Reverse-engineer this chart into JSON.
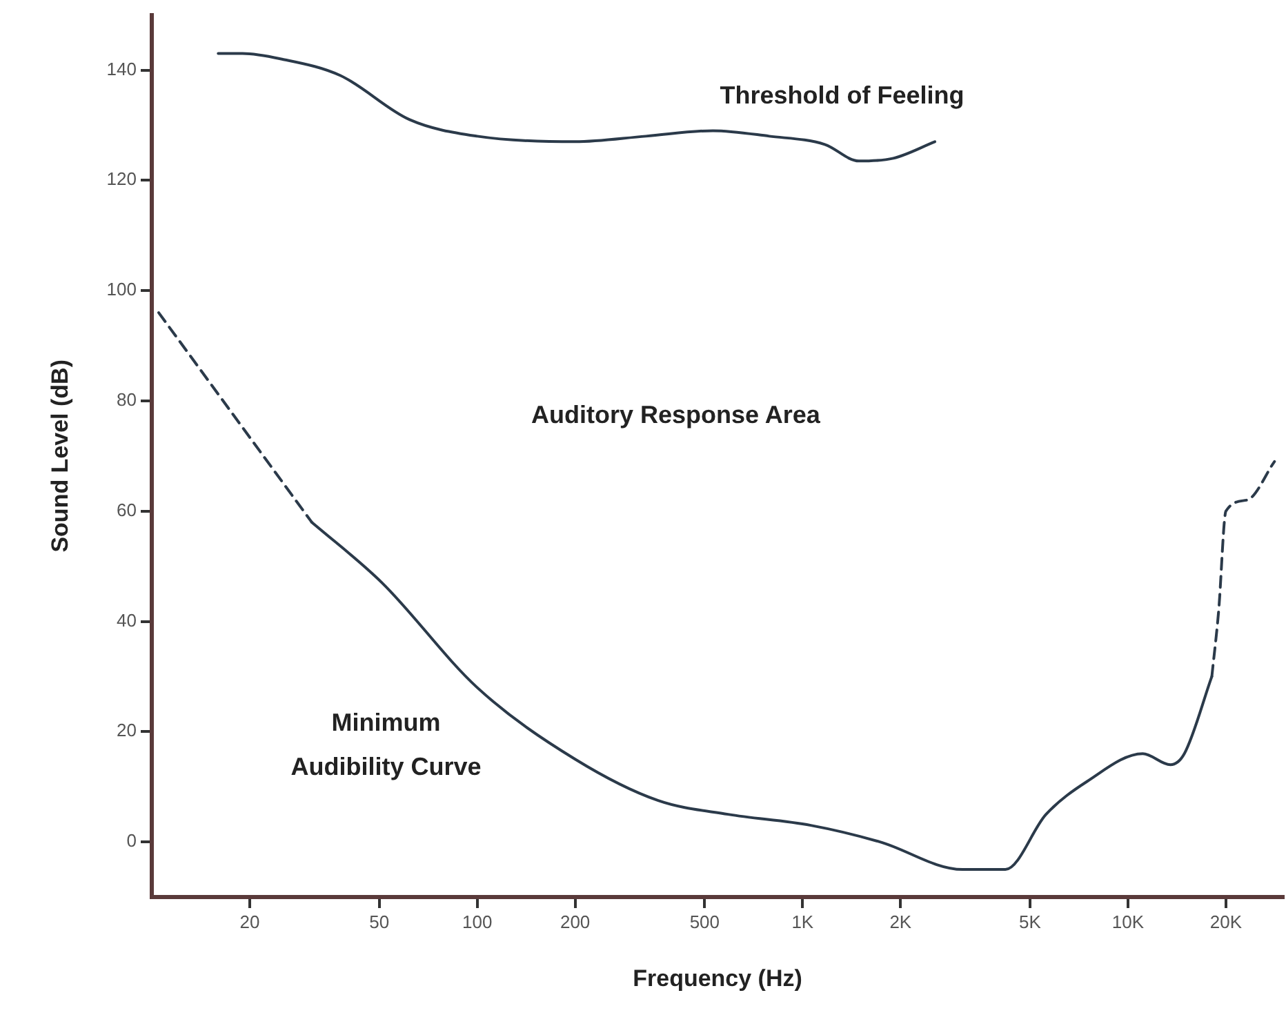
{
  "chart_data": {
    "type": "line",
    "xlabel": "Frequency (Hz)",
    "ylabel": "Sound Level (dB)",
    "log": "x",
    "xlim": [
      10,
      30000
    ],
    "xticks": [
      20,
      50,
      100,
      200,
      500,
      {
        "value": 1000,
        "label": "1K"
      },
      {
        "value": 2000,
        "label": "2K"
      },
      {
        "value": 5000,
        "label": "5K"
      },
      {
        "value": 10000,
        "label": "10K"
      },
      {
        "value": 20000,
        "label": "20K"
      }
    ],
    "ylim": [
      -10,
      150
    ],
    "yticks": [
      0,
      20,
      40,
      60,
      80,
      100,
      120,
      140
    ],
    "grid": false,
    "legend": false,
    "marker": "none",
    "series": [
      {
        "color": "#2b3a4a",
        "line_style": "solid",
        "x": [
          16,
          19,
          25,
          38,
          62,
          100,
          200,
          330,
          530,
          790,
          1170,
          1490,
          1900,
          2550
        ],
        "values": [
          143,
          143,
          142,
          139,
          131,
          128,
          127,
          128,
          129,
          128,
          126.5,
          123.5,
          124,
          127
        ]
      },
      {
        "color": "#2b3a4a",
        "line_style": "solid",
        "x": [
          31,
          51,
          100,
          200,
          360,
          590,
          1060,
          1730,
          3100,
          4200,
          5600,
          7500,
          11100,
          13500,
          14900,
          18100
        ],
        "values": [
          58,
          47,
          28,
          15,
          7.5,
          5,
          3,
          0,
          -5,
          -5,
          5,
          11,
          16,
          14,
          16,
          30
        ]
      },
      {
        "color": "#2b3a4a",
        "line_style": "dashed",
        "x": [
          10.5,
          31
        ],
        "values": [
          96,
          58
        ]
      },
      {
        "color": "#2b3a4a",
        "line_style": "dashed",
        "x": [
          18100,
          19000,
          20000,
          23200,
          28200
        ],
        "values": [
          30,
          42,
          60,
          62,
          69
        ]
      }
    ],
    "annotations": [
      "Threshold of Feeling",
      "Auditory Response Area",
      "Minimum\nAudibility Curve"
    ]
  }
}
